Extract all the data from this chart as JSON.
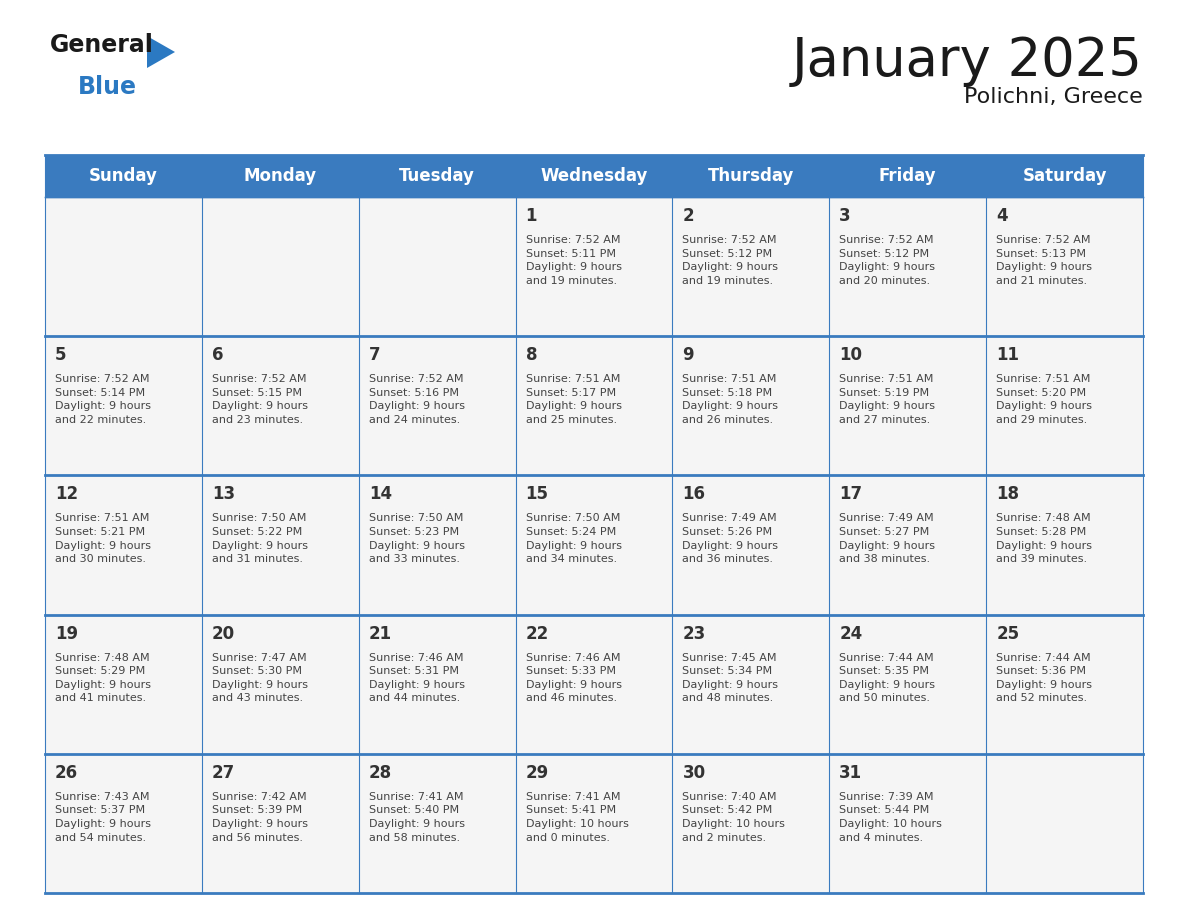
{
  "title": "January 2025",
  "subtitle": "Polichni, Greece",
  "header_bg_color": "#3a7bbf",
  "header_text_color": "#ffffff",
  "cell_bg_color": "#f5f5f5",
  "day_number_color": "#333333",
  "cell_text_color": "#444444",
  "border_color": "#3a7bbf",
  "days_of_week": [
    "Sunday",
    "Monday",
    "Tuesday",
    "Wednesday",
    "Thursday",
    "Friday",
    "Saturday"
  ],
  "weeks": [
    [
      {
        "day": null,
        "info": null
      },
      {
        "day": null,
        "info": null
      },
      {
        "day": null,
        "info": null
      },
      {
        "day": 1,
        "info": "Sunrise: 7:52 AM\nSunset: 5:11 PM\nDaylight: 9 hours\nand 19 minutes."
      },
      {
        "day": 2,
        "info": "Sunrise: 7:52 AM\nSunset: 5:12 PM\nDaylight: 9 hours\nand 19 minutes."
      },
      {
        "day": 3,
        "info": "Sunrise: 7:52 AM\nSunset: 5:12 PM\nDaylight: 9 hours\nand 20 minutes."
      },
      {
        "day": 4,
        "info": "Sunrise: 7:52 AM\nSunset: 5:13 PM\nDaylight: 9 hours\nand 21 minutes."
      }
    ],
    [
      {
        "day": 5,
        "info": "Sunrise: 7:52 AM\nSunset: 5:14 PM\nDaylight: 9 hours\nand 22 minutes."
      },
      {
        "day": 6,
        "info": "Sunrise: 7:52 AM\nSunset: 5:15 PM\nDaylight: 9 hours\nand 23 minutes."
      },
      {
        "day": 7,
        "info": "Sunrise: 7:52 AM\nSunset: 5:16 PM\nDaylight: 9 hours\nand 24 minutes."
      },
      {
        "day": 8,
        "info": "Sunrise: 7:51 AM\nSunset: 5:17 PM\nDaylight: 9 hours\nand 25 minutes."
      },
      {
        "day": 9,
        "info": "Sunrise: 7:51 AM\nSunset: 5:18 PM\nDaylight: 9 hours\nand 26 minutes."
      },
      {
        "day": 10,
        "info": "Sunrise: 7:51 AM\nSunset: 5:19 PM\nDaylight: 9 hours\nand 27 minutes."
      },
      {
        "day": 11,
        "info": "Sunrise: 7:51 AM\nSunset: 5:20 PM\nDaylight: 9 hours\nand 29 minutes."
      }
    ],
    [
      {
        "day": 12,
        "info": "Sunrise: 7:51 AM\nSunset: 5:21 PM\nDaylight: 9 hours\nand 30 minutes."
      },
      {
        "day": 13,
        "info": "Sunrise: 7:50 AM\nSunset: 5:22 PM\nDaylight: 9 hours\nand 31 minutes."
      },
      {
        "day": 14,
        "info": "Sunrise: 7:50 AM\nSunset: 5:23 PM\nDaylight: 9 hours\nand 33 minutes."
      },
      {
        "day": 15,
        "info": "Sunrise: 7:50 AM\nSunset: 5:24 PM\nDaylight: 9 hours\nand 34 minutes."
      },
      {
        "day": 16,
        "info": "Sunrise: 7:49 AM\nSunset: 5:26 PM\nDaylight: 9 hours\nand 36 minutes."
      },
      {
        "day": 17,
        "info": "Sunrise: 7:49 AM\nSunset: 5:27 PM\nDaylight: 9 hours\nand 38 minutes."
      },
      {
        "day": 18,
        "info": "Sunrise: 7:48 AM\nSunset: 5:28 PM\nDaylight: 9 hours\nand 39 minutes."
      }
    ],
    [
      {
        "day": 19,
        "info": "Sunrise: 7:48 AM\nSunset: 5:29 PM\nDaylight: 9 hours\nand 41 minutes."
      },
      {
        "day": 20,
        "info": "Sunrise: 7:47 AM\nSunset: 5:30 PM\nDaylight: 9 hours\nand 43 minutes."
      },
      {
        "day": 21,
        "info": "Sunrise: 7:46 AM\nSunset: 5:31 PM\nDaylight: 9 hours\nand 44 minutes."
      },
      {
        "day": 22,
        "info": "Sunrise: 7:46 AM\nSunset: 5:33 PM\nDaylight: 9 hours\nand 46 minutes."
      },
      {
        "day": 23,
        "info": "Sunrise: 7:45 AM\nSunset: 5:34 PM\nDaylight: 9 hours\nand 48 minutes."
      },
      {
        "day": 24,
        "info": "Sunrise: 7:44 AM\nSunset: 5:35 PM\nDaylight: 9 hours\nand 50 minutes."
      },
      {
        "day": 25,
        "info": "Sunrise: 7:44 AM\nSunset: 5:36 PM\nDaylight: 9 hours\nand 52 minutes."
      }
    ],
    [
      {
        "day": 26,
        "info": "Sunrise: 7:43 AM\nSunset: 5:37 PM\nDaylight: 9 hours\nand 54 minutes."
      },
      {
        "day": 27,
        "info": "Sunrise: 7:42 AM\nSunset: 5:39 PM\nDaylight: 9 hours\nand 56 minutes."
      },
      {
        "day": 28,
        "info": "Sunrise: 7:41 AM\nSunset: 5:40 PM\nDaylight: 9 hours\nand 58 minutes."
      },
      {
        "day": 29,
        "info": "Sunrise: 7:41 AM\nSunset: 5:41 PM\nDaylight: 10 hours\nand 0 minutes."
      },
      {
        "day": 30,
        "info": "Sunrise: 7:40 AM\nSunset: 5:42 PM\nDaylight: 10 hours\nand 2 minutes."
      },
      {
        "day": 31,
        "info": "Sunrise: 7:39 AM\nSunset: 5:44 PM\nDaylight: 10 hours\nand 4 minutes."
      },
      {
        "day": null,
        "info": null
      }
    ]
  ],
  "logo_general_color": "#1a1a1a",
  "logo_blue_color": "#2b79c2",
  "logo_triangle_color": "#2b79c2",
  "title_color": "#1a1a1a",
  "subtitle_color": "#1a1a1a"
}
